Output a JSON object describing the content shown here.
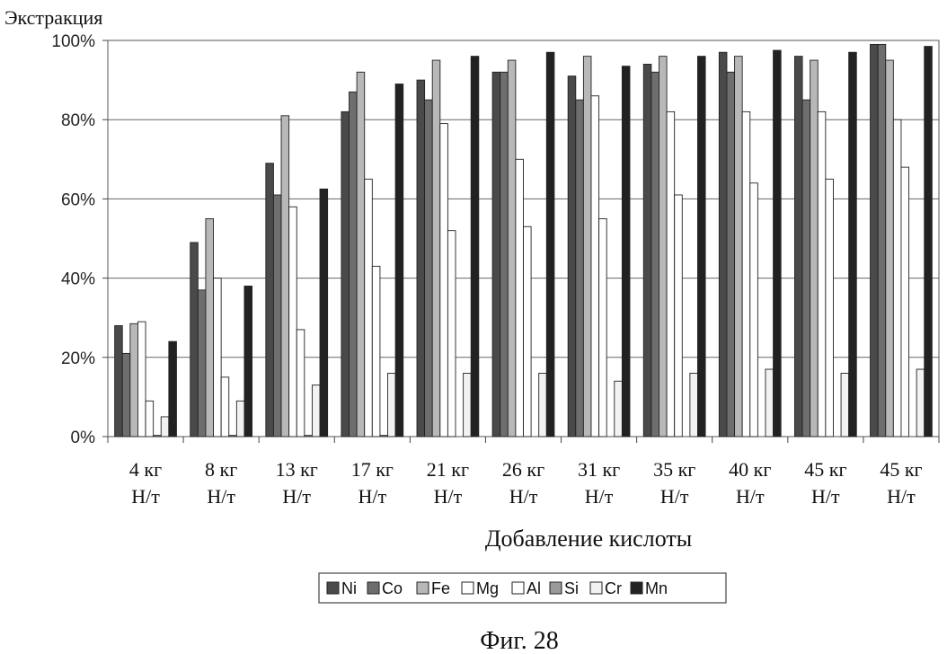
{
  "figure": {
    "caption": "Фиг. 28"
  },
  "chart_data": {
    "type": "bar",
    "ylabel": "Экстракция",
    "xlabel": "Добавление кислоты",
    "ylim": [
      0,
      100
    ],
    "yticks": [
      "0%",
      "20%",
      "40%",
      "60%",
      "80%",
      "100%"
    ],
    "grid": true,
    "legend": "bottom",
    "categories": [
      [
        "4 кг",
        "Н/т"
      ],
      [
        "8 кг",
        "Н/т"
      ],
      [
        "13 кг",
        "Н/т"
      ],
      [
        "17 кг",
        "Н/т"
      ],
      [
        "21 кг",
        "Н/т"
      ],
      [
        "26 кг",
        "Н/т"
      ],
      [
        "31 кг",
        "Н/т"
      ],
      [
        "35 кг",
        "Н/т"
      ],
      [
        "40 кг",
        "Н/т"
      ],
      [
        "45 кг",
        "Н/т"
      ],
      [
        "45 кг",
        "Н/т"
      ]
    ],
    "series": [
      {
        "name": "Ni",
        "color": "#4a4a4a",
        "values": [
          28,
          49,
          69,
          82,
          90,
          92,
          91,
          94,
          97,
          96,
          99
        ]
      },
      {
        "name": "Co",
        "color": "#6e6e6e",
        "values": [
          21,
          37,
          61,
          87,
          85,
          92,
          85,
          92,
          92,
          85,
          99
        ]
      },
      {
        "name": "Fe",
        "color": "#b8b8b8",
        "values": [
          28.5,
          55,
          81,
          92,
          95,
          95,
          96,
          96,
          96,
          95,
          95
        ]
      },
      {
        "name": "Mg",
        "color": "#ffffff",
        "values": [
          29,
          40,
          58,
          65,
          79,
          70,
          86,
          82,
          82,
          82,
          80
        ]
      },
      {
        "name": "Al",
        "color": "#ffffff",
        "values": [
          9,
          15,
          27,
          43,
          52,
          53,
          55,
          61,
          64,
          65,
          68
        ]
      },
      {
        "name": "Si",
        "color": "#9a9a9a",
        "values": [
          0.3,
          0.3,
          0.3,
          0.3,
          0,
          0,
          0,
          0,
          0,
          0,
          0
        ]
      },
      {
        "name": "Cr",
        "color": "#f2f2f2",
        "values": [
          5,
          9,
          13,
          16,
          16,
          16,
          14,
          16,
          17,
          16,
          17
        ]
      },
      {
        "name": "Mn",
        "color": "#222222",
        "values": [
          24,
          38,
          62.5,
          89,
          96,
          97,
          93.5,
          96,
          97.5,
          97,
          98.5
        ]
      }
    ]
  }
}
